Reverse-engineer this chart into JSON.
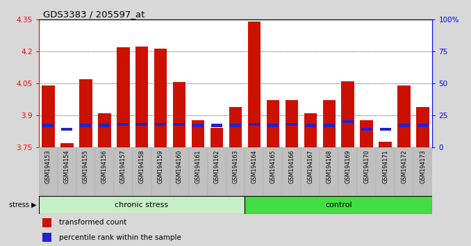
{
  "title": "GDS3383 / 205597_at",
  "samples": [
    "GSM194153",
    "GSM194154",
    "GSM194155",
    "GSM194156",
    "GSM194157",
    "GSM194158",
    "GSM194159",
    "GSM194160",
    "GSM194161",
    "GSM194162",
    "GSM194163",
    "GSM194164",
    "GSM194165",
    "GSM194166",
    "GSM194167",
    "GSM194168",
    "GSM194169",
    "GSM194170",
    "GSM194171",
    "GSM194172",
    "GSM194173"
  ],
  "transformed_count": [
    4.04,
    3.77,
    4.07,
    3.91,
    4.22,
    4.225,
    4.215,
    4.055,
    3.875,
    3.84,
    3.94,
    4.34,
    3.97,
    3.97,
    3.91,
    3.97,
    4.06,
    3.875,
    3.775,
    4.04,
    3.94
  ],
  "percentile_rank": [
    17,
    14,
    17,
    17,
    18,
    18,
    18,
    18,
    17,
    17,
    17,
    18,
    17,
    18,
    17,
    17,
    20,
    14,
    14,
    17,
    17
  ],
  "chronic_stress_count": 11,
  "bar_color": "#cc1100",
  "blue_color": "#2222cc",
  "ylim_left": [
    3.75,
    4.35
  ],
  "ylim_right": [
    0,
    100
  ],
  "yticks_left": [
    3.75,
    3.9,
    4.05,
    4.2,
    4.35
  ],
  "yticks_right": [
    0,
    25,
    50,
    75,
    100
  ],
  "fig_bg_color": "#d8d8d8",
  "plot_bg_color": "#ffffff",
  "group1_label": "chronic stress",
  "group2_label": "control",
  "group1_color": "#c8f0c8",
  "group2_color": "#44dd44",
  "stress_label": "stress",
  "legend_red_label": "transformed count",
  "legend_blue_label": "percentile rank within the sample",
  "xtick_bg_color": "#c0c0c0"
}
